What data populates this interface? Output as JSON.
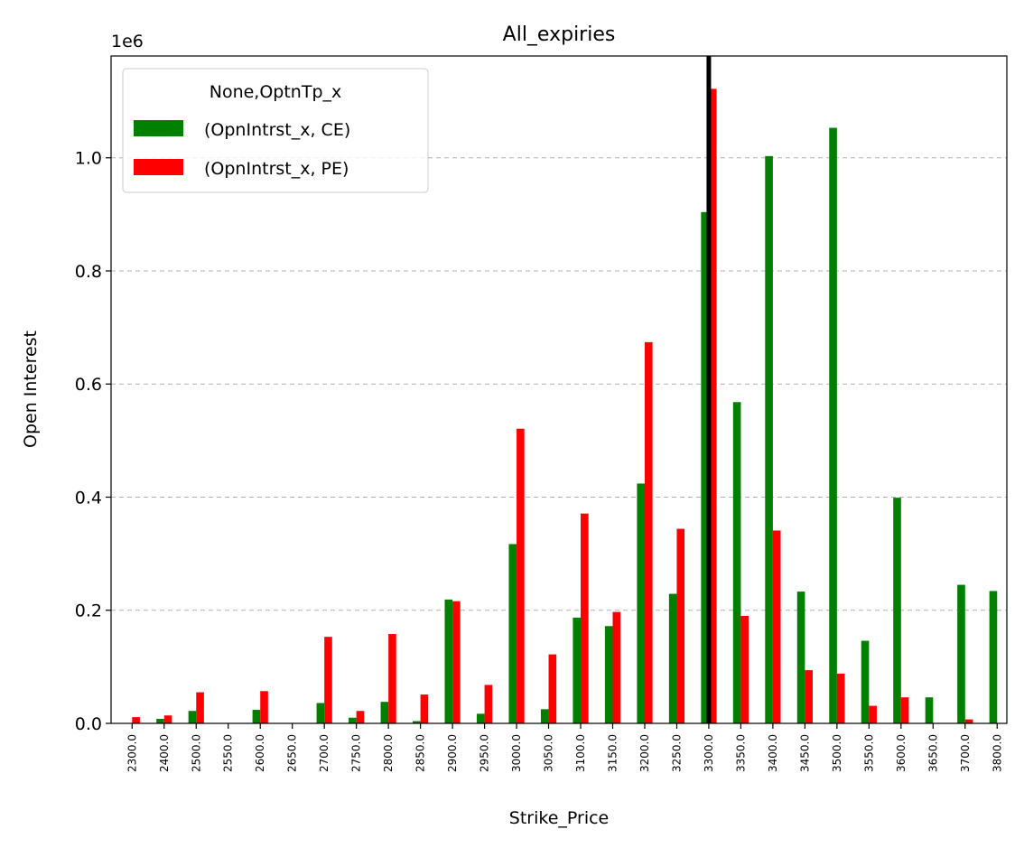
{
  "chart_data": {
    "type": "bar",
    "title": "All_expiries",
    "xlabel": "Strike_Price",
    "ylabel": "Open Interest",
    "y_scale_label": "1e6",
    "ylim": [
      0,
      1.18
    ],
    "yticks": [
      "0.0",
      "0.2",
      "0.4",
      "0.6",
      "0.8",
      "1.0"
    ],
    "grid": "y-dashed",
    "legend_title": "None,OptnTp_x",
    "legend_position": "top-left",
    "categories": [
      "2300.0",
      "2400.0",
      "2500.0",
      "2550.0",
      "2600.0",
      "2650.0",
      "2700.0",
      "2750.0",
      "2800.0",
      "2850.0",
      "2900.0",
      "2950.0",
      "3000.0",
      "3050.0",
      "3100.0",
      "3150.0",
      "3200.0",
      "3250.0",
      "3300.0",
      "3350.0",
      "3400.0",
      "3450.0",
      "3500.0",
      "3550.0",
      "3600.0",
      "3650.0",
      "3700.0",
      "3800.0"
    ],
    "series": [
      {
        "name": "(OpnIntrst_x, CE)",
        "color": "#008000",
        "values": [
          0,
          0.008,
          0.022,
          0,
          0.024,
          0,
          0.036,
          0.01,
          0.038,
          0.004,
          0.219,
          0.017,
          0.317,
          0.025,
          0.187,
          0.172,
          0.424,
          0.229,
          0.904,
          0.568,
          1.003,
          0.233,
          1.053,
          0.146,
          0.399,
          0.046,
          0.245,
          0.234
        ]
      },
      {
        "name": "(OpnIntrst_x, PE)",
        "color": "#ff0000",
        "values": [
          0.011,
          0.014,
          0.055,
          0,
          0.057,
          0,
          0.153,
          0.022,
          0.158,
          0.051,
          0.216,
          0.068,
          0.521,
          0.122,
          0.371,
          0.197,
          0.674,
          0.344,
          1.122,
          0.19,
          0.341,
          0.094,
          0.088,
          0.031,
          0.046,
          0,
          0.007,
          0
        ]
      }
    ],
    "vline": {
      "category": "3300.0",
      "color": "#000000"
    }
  }
}
